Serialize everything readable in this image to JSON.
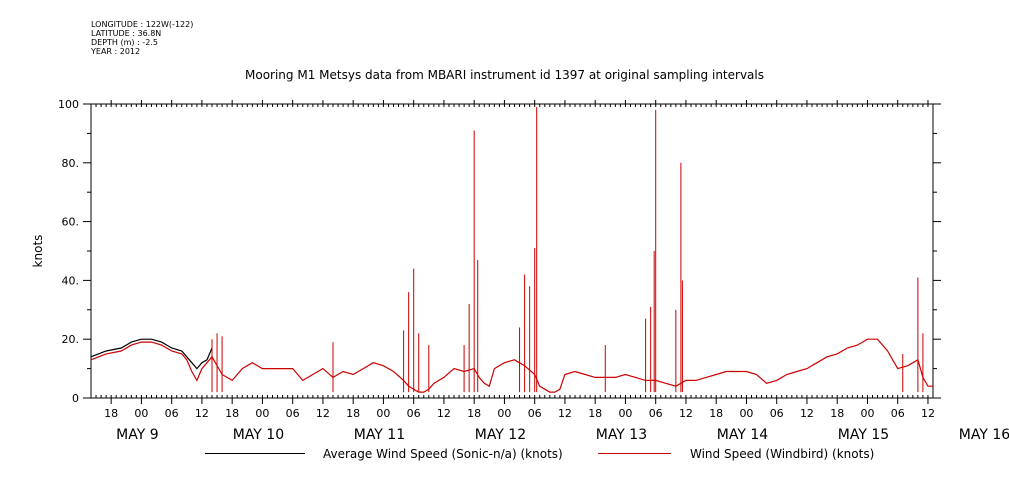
{
  "meta": {
    "longitude": "LONGITUDE : 122W(-122)",
    "latitude": "LATITUDE : 36.8N",
    "depth": "DEPTH (m) : -2.5",
    "year": "YEAR : 2012"
  },
  "chart_data": {
    "type": "line",
    "title": "Mooring M1 Metsys data from MBARI instrument id 1397 at original sampling intervals",
    "ylabel": "knots",
    "xlabel": "",
    "ylim": [
      0,
      100
    ],
    "yticks": [
      "0",
      "20.",
      "40.",
      "60.",
      "80.",
      "100"
    ],
    "xlim_hours": [
      -10,
      157
    ],
    "hour_ticks": [
      "18",
      "00",
      "06",
      "12",
      "18",
      "00",
      "06",
      "12",
      "18",
      "00",
      "06",
      "12",
      "18",
      "00",
      "06",
      "12",
      "18",
      "00",
      "06",
      "12",
      "18",
      "00",
      "06",
      "12",
      "18",
      "00",
      "06",
      "12"
    ],
    "day_labels": [
      "MAY  9",
      "MAY 10",
      "MAY 11",
      "MAY 12",
      "MAY 13",
      "MAY 14",
      "MAY 15",
      "MAY 16"
    ],
    "series": [
      {
        "name": "Average Wind Speed (Sonic-n/a) (knots)",
        "color": "#000000",
        "x": [
          -10,
          -7,
          -4,
          -2,
          0,
          2,
          4,
          6,
          8,
          9,
          10,
          11,
          12,
          13,
          14
        ],
        "y": [
          14,
          16,
          17,
          19,
          20,
          20,
          19,
          17,
          16,
          14,
          12,
          10,
          12,
          13,
          17
        ]
      },
      {
        "name": "Wind Speed (Windbird) (knots)",
        "color": "#cc0000",
        "x": [
          -10,
          -7,
          -4,
          -2,
          0,
          2,
          4,
          6,
          8,
          9,
          10,
          11,
          12,
          13,
          14,
          16,
          18,
          20,
          22,
          24,
          26,
          28,
          30,
          32,
          34,
          36,
          38,
          40,
          42,
          44,
          46,
          48,
          50,
          52,
          53,
          54,
          55,
          56,
          57,
          58,
          60,
          62,
          64,
          66,
          67,
          68,
          69,
          70,
          72,
          74,
          76,
          78,
          79,
          80,
          81,
          82,
          83,
          84,
          86,
          88,
          90,
          92,
          94,
          96,
          98,
          100,
          102,
          104,
          106,
          108,
          110,
          112,
          114,
          116,
          118,
          120,
          122,
          124,
          126,
          128,
          130,
          132,
          134,
          136,
          138,
          140,
          142,
          144,
          146,
          148,
          150,
          152,
          154,
          155,
          156,
          157
        ],
        "y": [
          13,
          15,
          16,
          18,
          19,
          19,
          18,
          16,
          15,
          13,
          9,
          6,
          10,
          12,
          14,
          8,
          6,
          10,
          12,
          10,
          10,
          10,
          10,
          6,
          8,
          10,
          7,
          9,
          8,
          10,
          12,
          11,
          9,
          6,
          4,
          3,
          2,
          2,
          3,
          5,
          7,
          10,
          9,
          10,
          7,
          5,
          4,
          10,
          12,
          13,
          11,
          8,
          4,
          3,
          2,
          2,
          3,
          8,
          9,
          8,
          7,
          7,
          7,
          8,
          7,
          6,
          6,
          5,
          4,
          6,
          6,
          7,
          8,
          9,
          9,
          9,
          8,
          5,
          6,
          8,
          9,
          10,
          12,
          14,
          15,
          17,
          18,
          20,
          20,
          16,
          10,
          11,
          13,
          7,
          4,
          4
        ],
        "spikes": [
          {
            "x": 14,
            "y": 20
          },
          {
            "x": 15,
            "y": 22
          },
          {
            "x": 16,
            "y": 21
          },
          {
            "x": 38,
            "y": 19
          },
          {
            "x": 52,
            "y": 23
          },
          {
            "x": 53,
            "y": 36
          },
          {
            "x": 54,
            "y": 44
          },
          {
            "x": 55,
            "y": 22
          },
          {
            "x": 57,
            "y": 18
          },
          {
            "x": 64,
            "y": 18
          },
          {
            "x": 65,
            "y": 32
          },
          {
            "x": 66,
            "y": 91
          },
          {
            "x": 66.7,
            "y": 47
          },
          {
            "x": 75,
            "y": 24
          },
          {
            "x": 76,
            "y": 42
          },
          {
            "x": 77,
            "y": 38
          },
          {
            "x": 78,
            "y": 51
          },
          {
            "x": 78.4,
            "y": 99
          },
          {
            "x": 92,
            "y": 18
          },
          {
            "x": 100,
            "y": 27
          },
          {
            "x": 101,
            "y": 31
          },
          {
            "x": 101.7,
            "y": 50
          },
          {
            "x": 102,
            "y": 98
          },
          {
            "x": 106,
            "y": 30
          },
          {
            "x": 107,
            "y": 80
          },
          {
            "x": 107.3,
            "y": 40
          },
          {
            "x": 151,
            "y": 15
          },
          {
            "x": 154,
            "y": 41
          },
          {
            "x": 155,
            "y": 22
          }
        ]
      }
    ],
    "grid": false,
    "legend": "bottom"
  }
}
